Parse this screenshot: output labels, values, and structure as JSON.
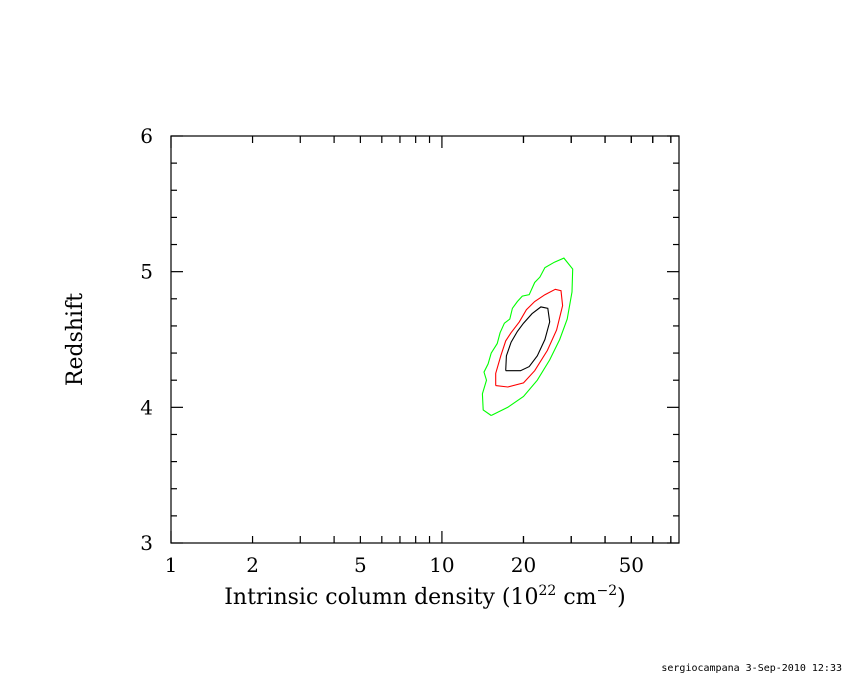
{
  "chart_data": {
    "type": "contour",
    "xscale": "log",
    "xlim": [
      1,
      75
    ],
    "ylim": [
      3,
      6
    ],
    "x_ticks": [
      1,
      2,
      5,
      10,
      20,
      50
    ],
    "x_tick_labels": [
      "1",
      "2",
      "5",
      "10",
      "20",
      "50"
    ],
    "y_ticks": [
      3,
      4,
      5,
      6
    ],
    "y_tick_labels": [
      "3",
      "4",
      "5",
      "6"
    ],
    "xlabel": {
      "pre": "Intrinsic column density (10",
      "sup1": "22",
      "mid": " cm",
      "sup2": "−2",
      "post": ")"
    },
    "ylabel": "Redshift",
    "contours": [
      {
        "color": "#000000",
        "points": [
          [
            17.2,
            4.27
          ],
          [
            17.3,
            4.38
          ],
          [
            18.0,
            4.48
          ],
          [
            19.0,
            4.56
          ],
          [
            20.0,
            4.62
          ],
          [
            21.5,
            4.69
          ],
          [
            23.2,
            4.74
          ],
          [
            24.6,
            4.73
          ],
          [
            25.0,
            4.63
          ],
          [
            24.0,
            4.5
          ],
          [
            22.5,
            4.38
          ],
          [
            21.0,
            4.3
          ],
          [
            19.5,
            4.27
          ],
          [
            17.2,
            4.27
          ]
        ]
      },
      {
        "color": "#ff0000",
        "points": [
          [
            15.8,
            4.16
          ],
          [
            15.8,
            4.25
          ],
          [
            16.5,
            4.38
          ],
          [
            17.2,
            4.49
          ],
          [
            18.0,
            4.55
          ],
          [
            19.3,
            4.63
          ],
          [
            20.5,
            4.72
          ],
          [
            22.0,
            4.78
          ],
          [
            24.0,
            4.83
          ],
          [
            26.2,
            4.87
          ],
          [
            27.5,
            4.86
          ],
          [
            27.9,
            4.75
          ],
          [
            26.5,
            4.57
          ],
          [
            24.5,
            4.42
          ],
          [
            22.0,
            4.27
          ],
          [
            20.0,
            4.18
          ],
          [
            17.5,
            4.15
          ],
          [
            15.8,
            4.16
          ]
        ]
      },
      {
        "color": "#00ff00",
        "points": [
          [
            15.2,
            3.94
          ],
          [
            14.2,
            3.98
          ],
          [
            14.1,
            4.1
          ],
          [
            14.6,
            4.2
          ],
          [
            14.3,
            4.26
          ],
          [
            14.8,
            4.32
          ],
          [
            15.2,
            4.4
          ],
          [
            16.0,
            4.47
          ],
          [
            16.4,
            4.55
          ],
          [
            17.0,
            4.62
          ],
          [
            17.8,
            4.65
          ],
          [
            18.2,
            4.73
          ],
          [
            19.0,
            4.78
          ],
          [
            19.8,
            4.82
          ],
          [
            21.0,
            4.83
          ],
          [
            22.0,
            4.92
          ],
          [
            23.0,
            4.96
          ],
          [
            24.0,
            5.03
          ],
          [
            26.0,
            5.07
          ],
          [
            28.2,
            5.1
          ],
          [
            30.4,
            5.02
          ],
          [
            30.2,
            4.85
          ],
          [
            29.0,
            4.65
          ],
          [
            27.2,
            4.5
          ],
          [
            25.0,
            4.35
          ],
          [
            22.5,
            4.2
          ],
          [
            20.0,
            4.08
          ],
          [
            17.5,
            4.0
          ],
          [
            15.2,
            3.94
          ]
        ]
      }
    ]
  },
  "footer": "sergiocampana  3-Sep-2010 12:33"
}
